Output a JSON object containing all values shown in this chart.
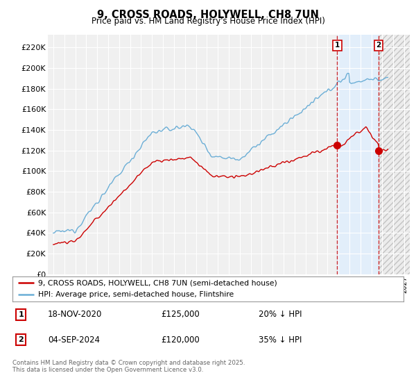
{
  "title": "9, CROSS ROADS, HOLYWELL, CH8 7UN",
  "subtitle": "Price paid vs. HM Land Registry's House Price Index (HPI)",
  "ytick_values": [
    0,
    20000,
    40000,
    60000,
    80000,
    100000,
    120000,
    140000,
    160000,
    180000,
    200000,
    220000
  ],
  "ylim": [
    0,
    232000
  ],
  "xlim_start": 1994.5,
  "xlim_end": 2027.5,
  "hpi_color": "#6baed6",
  "price_color": "#cc0000",
  "vline_color": "#cc0000",
  "marker1_x": 2020.88,
  "marker2_x": 2024.67,
  "marker1_price": 125000,
  "marker2_price": 120000,
  "transaction1_date": "18-NOV-2020",
  "transaction1_amount": "£125,000",
  "transaction1_pct": "20% ↓ HPI",
  "transaction2_date": "04-SEP-2024",
  "transaction2_amount": "£120,000",
  "transaction2_pct": "35% ↓ HPI",
  "legend_line1": "9, CROSS ROADS, HOLYWELL, CH8 7UN (semi-detached house)",
  "legend_line2": "HPI: Average price, semi-detached house, Flintshire",
  "footer": "Contains HM Land Registry data © Crown copyright and database right 2025.\nThis data is licensed under the Open Government Licence v3.0.",
  "bg_color": "#ffffff",
  "plot_bg_color": "#f0f0f0",
  "grid_color": "#ffffff",
  "shade_color": "#ddeeff",
  "hatch_color": "#cccccc"
}
